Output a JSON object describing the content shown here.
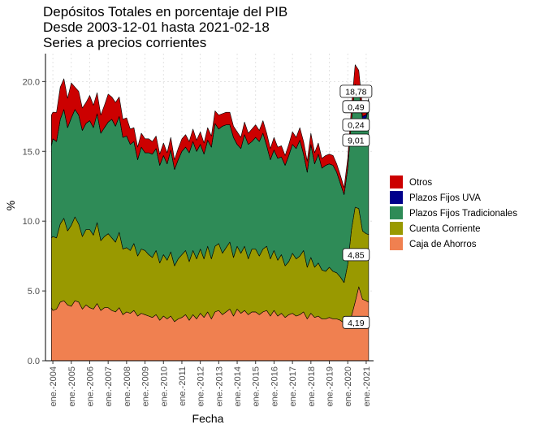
{
  "chart_data": {
    "type": "area",
    "stacked": true,
    "title": "Depósitos Totales en porcentaje del PIB",
    "subtitle": [
      "Desde 2003-12-01 hasta 2021-02-18",
      "Series a precios corrientes"
    ],
    "xlabel": "Fecha",
    "ylabel": "%",
    "ylim": [
      0,
      22
    ],
    "yticks": [
      "0.0",
      "5.0",
      "10.0",
      "15.0",
      "20.0"
    ],
    "xlim": [
      2003.6,
      2021.4
    ],
    "xticks": [
      {
        "x": 2004,
        "label": "ene.-2004"
      },
      {
        "x": 2005,
        "label": "ene.-2005"
      },
      {
        "x": 2006,
        "label": "ene.-2006"
      },
      {
        "x": 2007,
        "label": "ene.-2007"
      },
      {
        "x": 2008,
        "label": "ene.-2008"
      },
      {
        "x": 2009,
        "label": "ene.-2009"
      },
      {
        "x": 2010,
        "label": "ene.-2010"
      },
      {
        "x": 2011,
        "label": "ene.-2011"
      },
      {
        "x": 2012,
        "label": "ene.-2012"
      },
      {
        "x": 2013,
        "label": "ene.-2013"
      },
      {
        "x": 2014,
        "label": "ene.-2014"
      },
      {
        "x": 2015,
        "label": "ene.-2015"
      },
      {
        "x": 2016,
        "label": "ene.-2016"
      },
      {
        "x": 2017,
        "label": "ene.-2017"
      },
      {
        "x": 2018,
        "label": "ene.-2018"
      },
      {
        "x": 2019,
        "label": "ene.-2019"
      },
      {
        "x": 2020,
        "label": "ene.-2020"
      },
      {
        "x": 2021,
        "label": "ene.-2021"
      }
    ],
    "grid": true,
    "legend_position": "right",
    "legend_order": [
      "Otros",
      "Plazos Fijos UVA",
      "Plazos Fijos Tradicionales",
      "Cuenta Corriente",
      "Caja de Ahorros"
    ],
    "x": [
      2003.92,
      2004.0,
      2004.2,
      2004.4,
      2004.6,
      2004.8,
      2005.0,
      2005.2,
      2005.4,
      2005.6,
      2005.8,
      2006.0,
      2006.2,
      2006.4,
      2006.6,
      2006.8,
      2007.0,
      2007.2,
      2007.4,
      2007.6,
      2007.8,
      2008.0,
      2008.2,
      2008.4,
      2008.6,
      2008.8,
      2009.0,
      2009.2,
      2009.4,
      2009.6,
      2009.8,
      2010.0,
      2010.2,
      2010.4,
      2010.6,
      2010.8,
      2011.0,
      2011.2,
      2011.4,
      2011.6,
      2011.8,
      2012.0,
      2012.2,
      2012.4,
      2012.6,
      2012.8,
      2013.0,
      2013.2,
      2013.4,
      2013.6,
      2013.8,
      2014.0,
      2014.2,
      2014.4,
      2014.6,
      2014.8,
      2015.0,
      2015.2,
      2015.4,
      2015.6,
      2015.8,
      2016.0,
      2016.2,
      2016.4,
      2016.6,
      2016.8,
      2017.0,
      2017.2,
      2017.4,
      2017.6,
      2017.8,
      2018.0,
      2018.2,
      2018.4,
      2018.6,
      2018.8,
      2019.0,
      2019.2,
      2019.4,
      2019.6,
      2019.8,
      2020.0,
      2020.2,
      2020.4,
      2020.6,
      2020.8,
      2021.0,
      2021.13
    ],
    "series": [
      {
        "name": "Caja de Ahorros",
        "color": "#F08050",
        "values": [
          3.8,
          3.6,
          3.7,
          4.2,
          4.3,
          4.0,
          3.9,
          4.3,
          4.2,
          3.7,
          4.0,
          3.8,
          3.7,
          4.1,
          3.6,
          3.8,
          3.8,
          3.6,
          3.5,
          3.8,
          3.3,
          3.5,
          3.4,
          3.6,
          3.2,
          3.4,
          3.3,
          3.2,
          3.1,
          3.3,
          2.9,
          3.2,
          3.0,
          3.2,
          2.8,
          3.0,
          3.1,
          3.3,
          2.9,
          3.3,
          3.0,
          3.4,
          3.1,
          3.5,
          3.0,
          3.5,
          3.6,
          3.3,
          3.5,
          3.7,
          3.2,
          3.7,
          3.4,
          3.6,
          3.3,
          3.5,
          3.5,
          3.3,
          3.5,
          3.6,
          3.2,
          3.6,
          3.2,
          3.4,
          3.1,
          3.3,
          3.4,
          3.2,
          3.3,
          3.5,
          3.0,
          3.4,
          3.1,
          3.2,
          3.0,
          3.0,
          3.1,
          3.0,
          3.0,
          2.9,
          2.7,
          2.9,
          3.2,
          4.2,
          5.3,
          4.4,
          4.3,
          4.19
        ]
      },
      {
        "name": "Cuenta Corriente",
        "color": "#999900",
        "values": [
          5.0,
          5.3,
          5.1,
          5.6,
          5.9,
          5.3,
          5.8,
          6.0,
          5.6,
          5.2,
          5.4,
          5.6,
          5.3,
          5.8,
          5.0,
          5.1,
          5.3,
          5.2,
          5.0,
          5.4,
          4.7,
          4.6,
          4.5,
          4.8,
          4.3,
          4.6,
          4.6,
          4.4,
          4.3,
          4.6,
          4.1,
          4.4,
          4.2,
          4.6,
          4.0,
          4.3,
          4.5,
          4.6,
          4.2,
          4.6,
          4.3,
          4.6,
          4.2,
          4.7,
          4.3,
          4.7,
          4.8,
          4.4,
          4.6,
          4.8,
          4.2,
          4.5,
          4.3,
          4.6,
          4.0,
          4.5,
          4.5,
          4.2,
          4.5,
          4.6,
          4.1,
          4.3,
          4.0,
          4.2,
          3.7,
          3.8,
          4.3,
          4.1,
          4.2,
          4.4,
          3.7,
          4.0,
          3.6,
          3.8,
          3.5,
          3.4,
          3.6,
          3.4,
          3.3,
          3.1,
          2.9,
          4.0,
          6.2,
          6.8,
          5.6,
          4.9,
          4.8,
          4.85
        ]
      },
      {
        "name": "Plazos Fijos Tradicionales",
        "color": "#2E8B57",
        "values": [
          6.6,
          7.0,
          6.9,
          7.5,
          7.8,
          7.4,
          7.7,
          7.7,
          7.8,
          7.6,
          7.6,
          7.8,
          7.7,
          7.8,
          7.7,
          7.8,
          8.0,
          8.5,
          8.3,
          8.3,
          8.0,
          8.0,
          7.6,
          7.3,
          6.9,
          7.3,
          7.0,
          7.3,
          7.4,
          7.3,
          7.0,
          7.1,
          6.9,
          7.3,
          6.9,
          7.1,
          7.4,
          7.4,
          7.8,
          7.8,
          7.7,
          7.5,
          7.5,
          7.6,
          8.0,
          8.8,
          8.2,
          9.1,
          8.8,
          8.4,
          8.6,
          7.3,
          7.5,
          8.0,
          8.2,
          7.7,
          8.0,
          8.2,
          8.3,
          7.2,
          7.1,
          7.2,
          7.3,
          7.0,
          7.2,
          7.6,
          7.8,
          7.9,
          8.3,
          6.9,
          6.8,
          8.1,
          7.4,
          7.8,
          7.3,
          7.6,
          7.4,
          7.6,
          7.2,
          6.7,
          6.3,
          6.9,
          7.8,
          8.8,
          8.6,
          8.0,
          8.3,
          9.01
        ]
      },
      {
        "name": "Plazos Fijos UVA",
        "color": "#00008B",
        "values": [
          0,
          0,
          0,
          0,
          0,
          0,
          0,
          0,
          0,
          0,
          0,
          0,
          0,
          0,
          0,
          0,
          0,
          0,
          0,
          0,
          0,
          0,
          0,
          0,
          0,
          0,
          0,
          0,
          0,
          0,
          0,
          0,
          0,
          0,
          0,
          0,
          0,
          0,
          0,
          0,
          0,
          0,
          0,
          0,
          0,
          0,
          0,
          0,
          0,
          0,
          0,
          0,
          0,
          0,
          0,
          0,
          0,
          0,
          0,
          0,
          0,
          0,
          0,
          0,
          0,
          0,
          0,
          0,
          0,
          0,
          0,
          0,
          0,
          0,
          0,
          0,
          0,
          0,
          0,
          0,
          0,
          0,
          0,
          0,
          0,
          0.2,
          0.22,
          0.24
        ]
      },
      {
        "name": "Otros",
        "color": "#CC0000",
        "values": [
          2.2,
          1.9,
          2.1,
          2.3,
          2.2,
          2.1,
          2.5,
          1.6,
          1.7,
          1.6,
          1.5,
          1.8,
          1.6,
          1.5,
          1.3,
          1.6,
          2.0,
          1.6,
          1.7,
          1.4,
          1.3,
          1.3,
          1.1,
          1.0,
          0.9,
          1.0,
          1.0,
          1.0,
          0.9,
          0.9,
          0.8,
          0.9,
          0.8,
          0.9,
          0.7,
          0.8,
          0.9,
          0.9,
          0.8,
          0.9,
          0.8,
          0.9,
          0.8,
          0.9,
          0.8,
          0.9,
          1.0,
          0.9,
          0.9,
          0.9,
          0.8,
          0.9,
          0.8,
          0.9,
          0.8,
          0.9,
          0.9,
          0.8,
          0.9,
          0.9,
          0.8,
          0.9,
          0.8,
          0.8,
          0.7,
          0.8,
          0.9,
          0.8,
          0.9,
          0.9,
          0.8,
          0.8,
          0.8,
          0.8,
          0.7,
          0.7,
          0.7,
          0.7,
          0.6,
          0.6,
          0.5,
          0.7,
          1.0,
          1.4,
          1.3,
          0.6,
          0.5,
          0.49
        ]
      }
    ],
    "data_labels": [
      {
        "text": "18,78",
        "x": 2020.45,
        "y": 19.3
      },
      {
        "text": "0,49",
        "x": 2020.45,
        "y": 18.2
      },
      {
        "text": "0,24",
        "x": 2020.45,
        "y": 16.9
      },
      {
        "text": "9,01",
        "x": 2020.45,
        "y": 15.8
      },
      {
        "text": "4,85",
        "x": 2020.45,
        "y": 7.6
      },
      {
        "text": "4,19",
        "x": 2020.45,
        "y": 2.75
      }
    ]
  }
}
